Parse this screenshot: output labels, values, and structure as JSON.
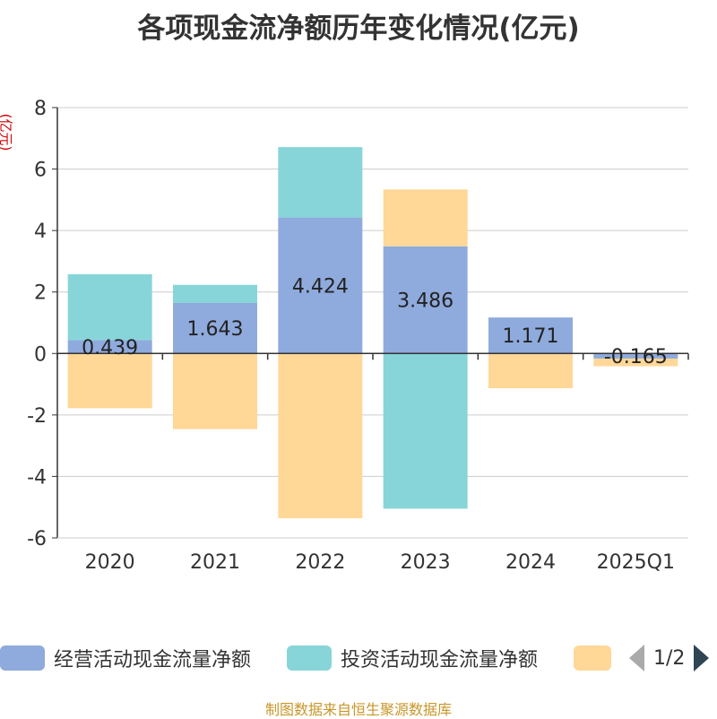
{
  "title": "各项现金流净额历年变化情况(亿元)",
  "y_unit": "(亿元)",
  "source": "制图数据来自恒生聚源数据库",
  "legend": {
    "items": [
      {
        "label": "经营活动现金流量净额",
        "color": "#8faadc"
      },
      {
        "label": "投资活动现金流量净额",
        "color": "#87d5d8"
      },
      {
        "label": "",
        "color": "#ffd797"
      }
    ],
    "pager": "1/2"
  },
  "chart_data": {
    "type": "bar",
    "stacked": true,
    "categories": [
      "2020",
      "2021",
      "2022",
      "2023",
      "2024",
      "2025Q1"
    ],
    "ylim": [
      -6,
      8
    ],
    "yticks": [
      -6,
      -4,
      -2,
      0,
      2,
      4,
      6,
      8
    ],
    "grid": true,
    "series": [
      {
        "name": "经营活动现金流量净额",
        "color": "#8faadc",
        "values": [
          0.439,
          1.643,
          4.424,
          3.486,
          1.171,
          -0.165
        ],
        "labels": [
          "0.439",
          "1.643",
          "4.424",
          "3.486",
          "1.171",
          "-0.165"
        ]
      },
      {
        "name": "投资活动现金流量净额",
        "color": "#87d5d8",
        "values": [
          2.14,
          0.59,
          2.29,
          -5.05,
          0.0,
          0.0
        ]
      },
      {
        "name": "",
        "color": "#ffd797",
        "values": [
          -1.78,
          -2.46,
          -5.36,
          1.85,
          -1.13,
          -0.25
        ]
      }
    ]
  }
}
